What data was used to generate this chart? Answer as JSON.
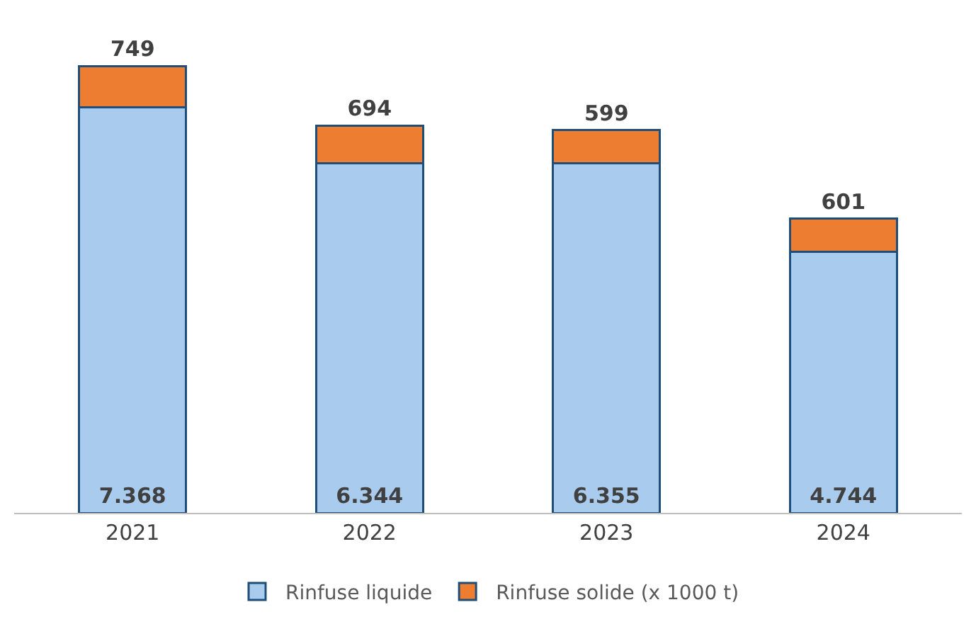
{
  "chart_data": {
    "type": "bar",
    "stacked": true,
    "categories": [
      "2021",
      "2022",
      "2023",
      "2024"
    ],
    "series": [
      {
        "name": "Rinfuse liquide",
        "color": "#a9cbee",
        "values": [
          7368,
          6344,
          6355,
          4744
        ],
        "value_labels": [
          "7.368",
          "6.344",
          "6.355",
          "4.744"
        ]
      },
      {
        "name": "Rinfuse solide (x 1000 t)",
        "color": "#ed7d31",
        "values": [
          749,
          694,
          599,
          601
        ],
        "value_labels": [
          "749",
          "694",
          "599",
          "601"
        ]
      }
    ],
    "legend": "bottom"
  }
}
